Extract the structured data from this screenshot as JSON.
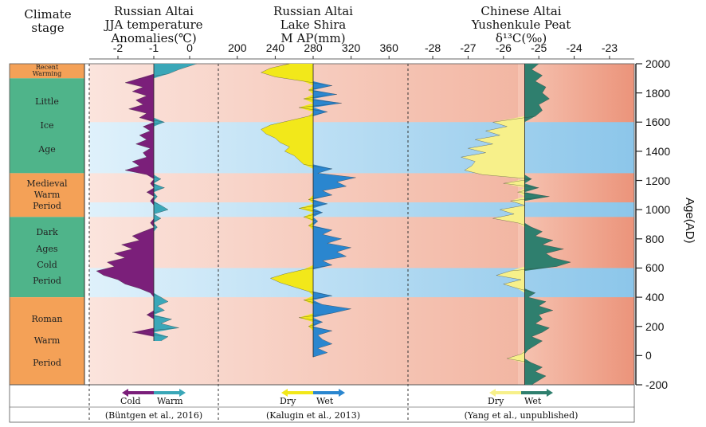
{
  "chart_data": {
    "type": "area",
    "y_axis": {
      "label": "Age(AD)",
      "ticks": [
        2000,
        1800,
        1600,
        1400,
        1200,
        1000,
        800,
        600,
        400,
        200,
        0,
        -200
      ],
      "ylim": [
        -200,
        2000
      ]
    },
    "climate_stage_header": [
      "Climate",
      "stage"
    ],
    "stages": [
      {
        "label": "Recent Warming",
        "from": 1900,
        "to": 2000,
        "color": "#f4a157"
      },
      {
        "label": "Little Ice Age",
        "lines": [
          "Little",
          "Ice",
          "Age"
        ],
        "from": 1250,
        "to": 1900,
        "color": "#4fb48a"
      },
      {
        "label": "Medieval Warm Period",
        "lines": [
          "Medieval",
          "Warm",
          "Period"
        ],
        "from": 950,
        "to": 1250,
        "color": "#f4a157"
      },
      {
        "label": "Dark Ages Cold Period",
        "lines": [
          "Dark",
          "Ages",
          "Cold",
          "Period"
        ],
        "from": 400,
        "to": 950,
        "color": "#4fb48a"
      },
      {
        "label": "Roman Warm Period",
        "lines": [
          "Roman",
          "Warm",
          "Period"
        ],
        "from": -200,
        "to": 400,
        "color": "#f4a157"
      }
    ],
    "cold_bands": [
      [
        1250,
        1600
      ],
      [
        950,
        1050
      ],
      [
        400,
        600
      ]
    ],
    "panels": [
      {
        "title_lines": [
          "Russian Altai",
          "JJA temperature",
          "Anomalies(℃)"
        ],
        "x_ticks": [
          "-2",
          "-1",
          "0"
        ],
        "x_tick_values": [
          -2,
          -1,
          0
        ],
        "xlim": [
          -2.8,
          0.8
        ],
        "baseline": -1,
        "legend": {
          "left": "Cold",
          "right": "Warm",
          "left_color": "#7b1f7a",
          "right_color": "#3aa7b8"
        },
        "source": "(Büntgen et al., 2016)",
        "series": {
          "age": [
            2000,
            1960,
            1930,
            1900,
            1870,
            1840,
            1810,
            1780,
            1750,
            1720,
            1690,
            1660,
            1630,
            1600,
            1570,
            1540,
            1510,
            1480,
            1450,
            1420,
            1390,
            1360,
            1330,
            1300,
            1270,
            1240,
            1210,
            1180,
            1150,
            1120,
            1090,
            1060,
            1030,
            1000,
            970,
            940,
            910,
            880,
            850,
            820,
            790,
            760,
            730,
            700,
            670,
            640,
            610,
            580,
            550,
            520,
            490,
            460,
            430,
            400,
            370,
            340,
            310,
            280,
            250,
            220,
            190,
            160,
            130,
            100
          ],
          "value": [
            0.2,
            -0.3,
            -0.6,
            -1.4,
            -1.8,
            -1.3,
            -1.6,
            -1.2,
            -1.5,
            -1.3,
            -1.7,
            -1.2,
            -1.4,
            -0.7,
            -1.3,
            -1.1,
            -1.4,
            -1.2,
            -1.5,
            -1.1,
            -1.3,
            -1.2,
            -1.6,
            -1.4,
            -1.8,
            -1.2,
            -0.8,
            -1.1,
            -0.7,
            -1.2,
            -0.9,
            -1.1,
            -0.8,
            -0.6,
            -1.0,
            -0.8,
            -1.1,
            -0.9,
            -1.3,
            -1.6,
            -1.4,
            -1.9,
            -1.6,
            -2.1,
            -1.8,
            -2.3,
            -2.1,
            -2.6,
            -2.4,
            -2.0,
            -1.8,
            -1.4,
            -1.1,
            -0.8,
            -0.6,
            -0.9,
            -0.7,
            -1.2,
            -0.5,
            -0.8,
            -0.3,
            -1.6,
            -0.6,
            -0.8
          ]
        }
      },
      {
        "title_lines": [
          "Russian Altai",
          "Lake Shira",
          "M AP(mm)"
        ],
        "x_ticks": [
          "200",
          "240",
          "280",
          "320",
          "360"
        ],
        "x_tick_values": [
          200,
          240,
          280,
          320,
          360
        ],
        "xlim": [
          180,
          380
        ],
        "baseline": 280,
        "legend": {
          "left": "Dry",
          "right": "Wet",
          "left_color": "#f2e81a",
          "right_color": "#2a86cf"
        },
        "source": "(Kalugin et al., 2013)",
        "series": {
          "age": [
            2000,
            1970,
            1940,
            1910,
            1880,
            1850,
            1820,
            1790,
            1760,
            1730,
            1700,
            1670,
            1640,
            1610,
            1580,
            1550,
            1520,
            1490,
            1460,
            1430,
            1400,
            1370,
            1340,
            1310,
            1280,
            1250,
            1220,
            1190,
            1160,
            1130,
            1100,
            1070,
            1040,
            1010,
            980,
            950,
            920,
            890,
            860,
            830,
            800,
            770,
            740,
            710,
            680,
            650,
            620,
            590,
            560,
            530,
            500,
            470,
            440,
            410,
            380,
            350,
            320,
            290,
            260,
            230,
            200,
            170,
            140,
            110,
            80,
            50,
            20,
            -10
          ],
          "value": [
            255,
            235,
            225,
            240,
            270,
            300,
            275,
            305,
            270,
            310,
            265,
            295,
            275,
            255,
            235,
            225,
            230,
            240,
            245,
            255,
            250,
            260,
            265,
            270,
            300,
            285,
            325,
            305,
            315,
            290,
            300,
            275,
            295,
            265,
            290,
            270,
            285,
            275,
            300,
            290,
            310,
            295,
            320,
            305,
            315,
            290,
            300,
            270,
            250,
            235,
            245,
            260,
            275,
            300,
            270,
            290,
            320,
            300,
            265,
            290,
            275,
            300,
            285,
            290,
            300,
            285,
            295,
            280
          ]
        }
      },
      {
        "title_lines": [
          "Chinese Altai",
          "Yushenkule Peat",
          "δ¹³C(‰)"
        ],
        "x_ticks": [
          "-28",
          "-27",
          "-26",
          "-25",
          "-24",
          "-23"
        ],
        "x_tick_values": [
          -28,
          -27,
          -26,
          -25,
          -24,
          -23
        ],
        "xlim": [
          -28.7,
          -22.3
        ],
        "baseline": -25.4,
        "legend": {
          "left": "Dry",
          "right": "Wet",
          "left_color": "#f7f08a",
          "right_color": "#2f7f6e"
        },
        "source": "(Yang et al., unpublished)",
        "series": {
          "age": [
            2000,
            1960,
            1920,
            1880,
            1840,
            1800,
            1760,
            1720,
            1680,
            1640,
            1600,
            1570,
            1540,
            1510,
            1480,
            1450,
            1420,
            1390,
            1360,
            1330,
            1300,
            1270,
            1240,
            1210,
            1180,
            1150,
            1120,
            1090,
            1060,
            1030,
            1000,
            970,
            940,
            910,
            880,
            850,
            820,
            790,
            760,
            730,
            700,
            670,
            640,
            610,
            580,
            550,
            520,
            490,
            460,
            430,
            400,
            370,
            340,
            310,
            280,
            250,
            220,
            190,
            160,
            130,
            100,
            70,
            40,
            10,
            -20,
            -50,
            -80,
            -110,
            -140,
            -170,
            -200
          ],
          "value": [
            -25.0,
            -25.2,
            -24.9,
            -25.1,
            -24.8,
            -24.9,
            -24.7,
            -25.0,
            -24.9,
            -25.1,
            -26.3,
            -25.9,
            -26.5,
            -26.1,
            -26.8,
            -26.3,
            -27.0,
            -26.5,
            -27.2,
            -26.8,
            -26.9,
            -27.1,
            -26.6,
            -25.2,
            -26.0,
            -25.0,
            -25.6,
            -24.7,
            -25.8,
            -25.4,
            -26.1,
            -25.7,
            -26.3,
            -25.6,
            -25.2,
            -24.9,
            -25.1,
            -24.6,
            -24.9,
            -24.3,
            -24.8,
            -24.6,
            -24.1,
            -24.5,
            -25.8,
            -26.2,
            -25.5,
            -26.0,
            -25.6,
            -25.1,
            -25.3,
            -24.8,
            -25.0,
            -24.6,
            -25.0,
            -24.9,
            -25.1,
            -24.7,
            -24.9,
            -25.2,
            -24.9,
            -25.1,
            -25.3,
            -25.5,
            -25.9,
            -25.2,
            -24.9,
            -25.1,
            -24.8,
            -25.0,
            -25.2
          ]
        }
      }
    ]
  }
}
